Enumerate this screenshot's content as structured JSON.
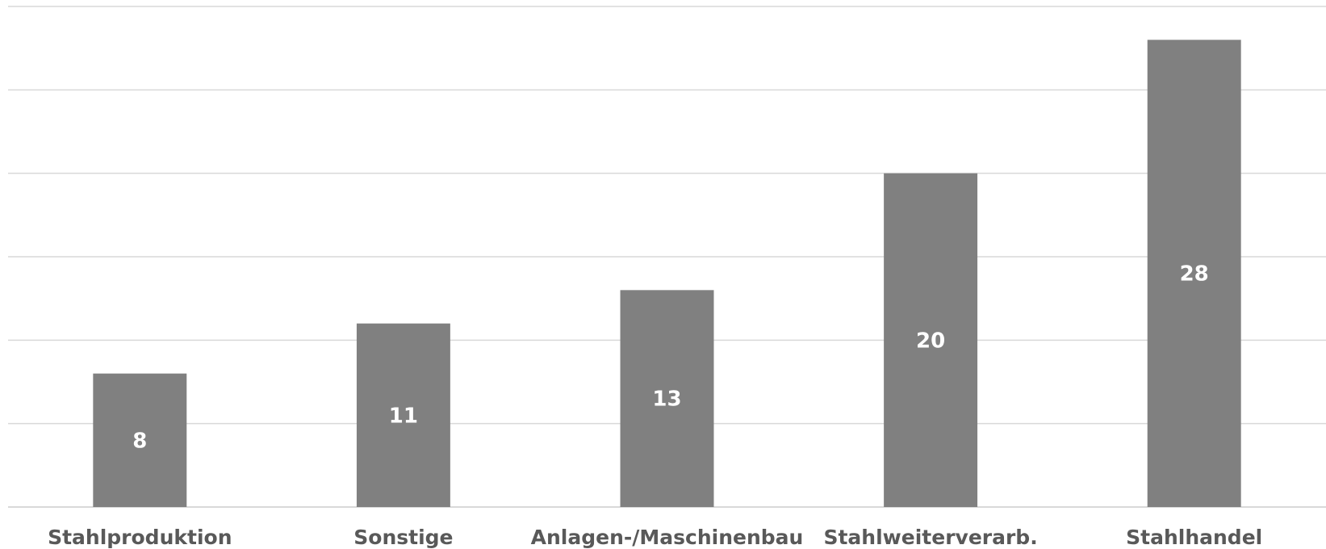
{
  "chart_data": {
    "type": "bar",
    "title": "",
    "xlabel": "",
    "ylabel": "",
    "categories": [
      "Stahlproduktion",
      "Sonstige",
      "Anlagen-/Maschinenbau",
      "Stahlweiterverarb.",
      "Stahlhandel"
    ],
    "values": [
      8,
      11,
      13,
      20,
      28
    ],
    "ylim": [
      0,
      30
    ],
    "grid": true,
    "legend": "none",
    "bar_color": "#808080",
    "grid_color": "#d9d9d9",
    "label_color": "#ffffff",
    "tick_color": "#595959"
  }
}
